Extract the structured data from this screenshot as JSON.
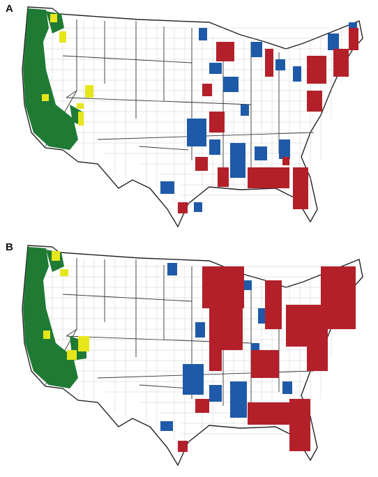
{
  "figure": {
    "panels": [
      {
        "label": "A"
      },
      {
        "label": "B"
      }
    ],
    "colors": {
      "green": "#1f7a34",
      "yellow": "#e6e61a",
      "blue": "#1f5aa8",
      "red": "#b3202a",
      "land": "#ffffff",
      "borders": "#222222"
    }
  }
}
